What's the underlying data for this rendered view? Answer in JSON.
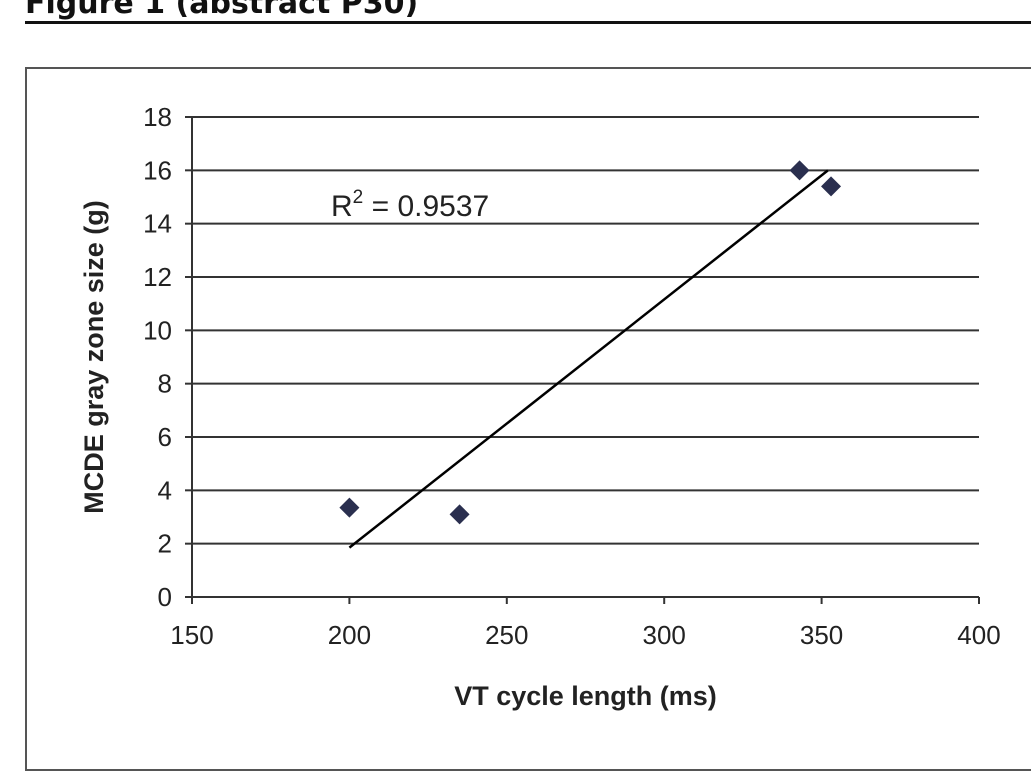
{
  "figure_title": "Figure 1 (abstract P30)",
  "chart_data": {
    "type": "scatter",
    "title": "",
    "xlabel": "VT cycle length (ms)",
    "ylabel": "MCDE gray zone size (g)",
    "xlim": [
      150,
      400
    ],
    "ylim": [
      0,
      18
    ],
    "xticks": [
      150,
      200,
      250,
      300,
      350,
      400
    ],
    "yticks": [
      0,
      2,
      4,
      6,
      8,
      10,
      12,
      14,
      16,
      18
    ],
    "grid": "horizontal",
    "points": [
      {
        "x": 200,
        "y": 3.35
      },
      {
        "x": 235,
        "y": 3.1
      },
      {
        "x": 343,
        "y": 16.0
      },
      {
        "x": 353,
        "y": 15.4
      }
    ],
    "trendline": {
      "type": "linear",
      "x": [
        200,
        352
      ],
      "y": [
        1.85,
        16.0
      ]
    },
    "annotation": {
      "text": "R",
      "sup": "2",
      "value": " = 0.9537"
    },
    "marker_color": "#2a2f4f"
  }
}
